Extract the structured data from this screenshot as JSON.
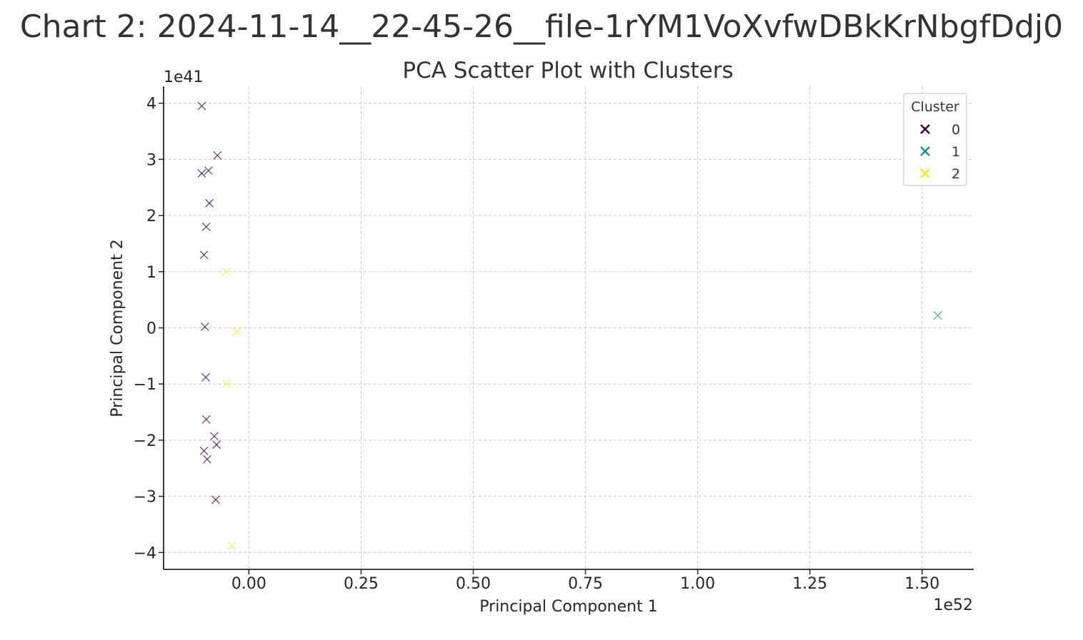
{
  "page": {
    "title": "Chart 2: 2024-11-14__22-45-26__file-1rYM1VoXvfwDBkKrNbgfDdj0"
  },
  "chart_data": {
    "type": "scatter",
    "title": "PCA Scatter Plot with Clusters",
    "xlabel": "Principal Component 1",
    "ylabel": "Principal Component 2",
    "x_offset_label": "1e52",
    "y_offset_label": "1e41",
    "xlim": [
      -0.19,
      1.615
    ],
    "ylim": [
      -4.3,
      4.3
    ],
    "x_ticks": [
      0.0,
      0.25,
      0.5,
      0.75,
      1.0,
      1.25,
      1.5
    ],
    "x_tick_labels": [
      "0.00",
      "0.25",
      "0.50",
      "0.75",
      "1.00",
      "1.25",
      "1.50"
    ],
    "y_ticks": [
      -4,
      -3,
      -2,
      -1,
      0,
      1,
      2,
      3,
      4
    ],
    "y_tick_labels": [
      "−4",
      "−3",
      "−2",
      "−1",
      "0",
      "1",
      "2",
      "3",
      "4"
    ],
    "grid": true,
    "marker": "x",
    "legend": {
      "title": "Cluster",
      "placement": "top-right"
    },
    "series": [
      {
        "name": "0",
        "color": "#440154",
        "points": [
          [
            -0.105,
            3.95
          ],
          [
            -0.07,
            3.07
          ],
          [
            -0.09,
            2.8
          ],
          [
            -0.105,
            2.75
          ],
          [
            -0.088,
            2.22
          ],
          [
            -0.095,
            1.8
          ],
          [
            -0.1,
            1.3
          ],
          [
            -0.098,
            0.02
          ],
          [
            -0.096,
            -0.88
          ],
          [
            -0.095,
            -1.63
          ],
          [
            -0.077,
            -1.93
          ],
          [
            -0.072,
            -2.08
          ],
          [
            -0.1,
            -2.19
          ],
          [
            -0.093,
            -2.34
          ],
          [
            -0.074,
            -3.06
          ]
        ]
      },
      {
        "name": "1",
        "color": "#21918c",
        "points": [
          [
            1.535,
            0.22
          ]
        ]
      },
      {
        "name": "2",
        "color": "#fde725",
        "points": [
          [
            -0.05,
            1.0
          ],
          [
            -0.027,
            -0.07
          ],
          [
            -0.05,
            -1.0
          ],
          [
            -0.038,
            -3.88
          ]
        ]
      }
    ]
  }
}
